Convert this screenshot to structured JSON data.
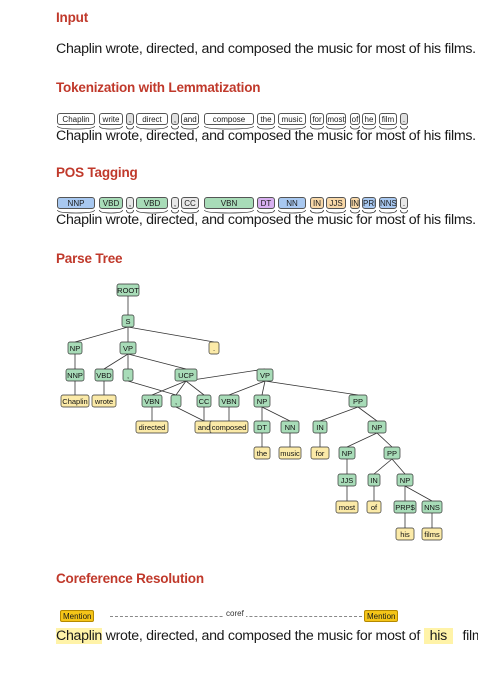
{
  "input": {
    "heading": "Input",
    "sentence": "Chaplin wrote, directed, and composed the music for most of his films."
  },
  "tokenization": {
    "heading": "Tokenization with Lemmatization",
    "lemmas": [
      "Chaplin",
      "write",
      ",",
      "direct",
      ",",
      "and",
      "compose",
      "the",
      "music",
      "for",
      "most",
      "of",
      "he",
      "film",
      "."
    ],
    "sentence": "Chaplin wrote, directed, and composed the music for most of his films."
  },
  "pos": {
    "heading": "POS Tagging",
    "tags": [
      "NNP",
      "VBD",
      ",",
      "VBD",
      ",",
      "CC",
      "VBN",
      "DT",
      "NN",
      "IN",
      "JJS",
      "IN",
      "PRP$",
      "NNS",
      "."
    ],
    "sentence": "Chaplin wrote, directed, and composed the music for most of his films."
  },
  "parse": {
    "heading": "Parse Tree",
    "nodes": [
      "ROOT",
      "S",
      "NP",
      ".",
      "NNP",
      "VP",
      "Chaplin",
      "VBD",
      ",",
      "UCP",
      "wrote",
      "VBN",
      ",",
      "CC",
      "VP",
      "directed",
      "and",
      "VBN",
      "NP",
      "PP",
      "composed",
      "DT",
      "NN",
      "IN",
      "NP",
      "the",
      "music",
      "for",
      "NP",
      "PP",
      "JJS",
      "IN",
      "NP",
      "most",
      "of",
      "PRP$",
      "NNS",
      "his",
      "films"
    ]
  },
  "coref": {
    "heading": "Coreference Resolution",
    "mention_label": "Mention",
    "link_label": "coref",
    "parts": [
      "Chaplin",
      " wrote, directed, and composed the music for most of ",
      "his",
      " films."
    ]
  },
  "colors": {
    "heading": "#c0392b",
    "nnp": "#a8c8f0",
    "verb": "#a8dcb8",
    "dt": "#d8b0f0",
    "in": "#f8d8a8",
    "leaf": "#fbeaa8",
    "phrase": "#a8dcb8",
    "mention": "#f5c518",
    "highlight": "#fff3a8"
  }
}
